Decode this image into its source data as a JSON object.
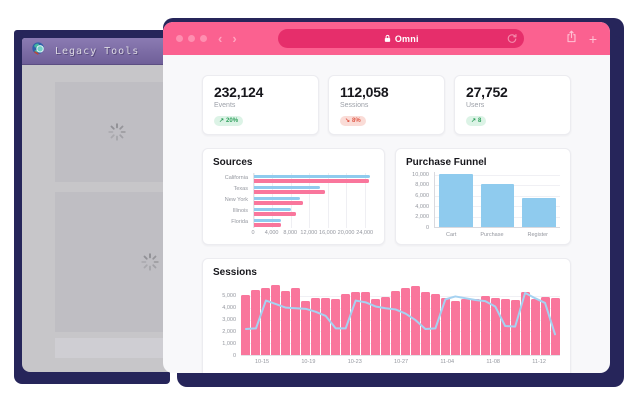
{
  "theme": {
    "chrome_pink": "#FB6190",
    "addressbar_pink": "#E62E6B",
    "shadow_navy": "#26255A",
    "legacy_purple": "#7B6BA2",
    "bar_pink": "#F9769C",
    "bar_blue": "#8FCBEE",
    "line_blue": "#A5D2F1"
  },
  "legacy": {
    "title": "Legacy Tools"
  },
  "browser": {
    "url_text": "Omni",
    "back": "‹",
    "forward": "›",
    "plus": "+"
  },
  "stats": [
    {
      "value": "232,124",
      "label": "Events",
      "arrow": "↗",
      "delta": "20%",
      "dir": "up"
    },
    {
      "value": "112,058",
      "label": "Sessions",
      "arrow": "↘",
      "delta": "8%",
      "dir": "down"
    },
    {
      "value": "27,752",
      "label": "Users",
      "arrow": "↗",
      "delta": "8",
      "dir": "up"
    }
  ],
  "chart_data": [
    {
      "type": "bar",
      "orientation": "horizontal",
      "title": "Sources",
      "categories": [
        "California",
        "Texas",
        "New York",
        "Illinois",
        "Florida"
      ],
      "series": [
        {
          "name": "blue",
          "color": "#8FCBEE",
          "values": [
            25200,
            14400,
            9900,
            8100,
            5900
          ]
        },
        {
          "name": "pink",
          "color": "#F9769C",
          "values": [
            24900,
            15300,
            10600,
            9000,
            5900
          ]
        }
      ],
      "xticks": [
        "0",
        "4,000",
        "8,000",
        "12,000",
        "16,000",
        "20,000",
        "24,000"
      ],
      "xlim": [
        0,
        26000
      ],
      "grid": true,
      "legend": false
    },
    {
      "type": "bar",
      "title": "Purchase Funnel",
      "categories": [
        "Cart",
        "Purchase",
        "Register"
      ],
      "values": [
        10200,
        8300,
        5500
      ],
      "color": "#8FCBEE",
      "yticks": [
        "10,000",
        "8,000",
        "6,000",
        "4,000",
        "2,000",
        "0"
      ],
      "ylim": [
        0,
        10500
      ],
      "grid": true,
      "legend": false
    },
    {
      "type": "bar+line",
      "title": "Sessions",
      "bar_color": "#F9769C",
      "line_color": "#A5D2F1",
      "bar_values": [
        5050,
        5500,
        5650,
        5900,
        5450,
        5700,
        4550,
        4850,
        4800,
        4700,
        5150,
        5300,
        5350,
        4700,
        4900,
        5400,
        5700,
        5850,
        5300,
        5150,
        4800,
        4600,
        4750,
        4700,
        5000,
        4850,
        4700,
        4650,
        5300,
        4750,
        4900,
        4850
      ],
      "line_values": [
        2200,
        2250,
        4600,
        4300,
        4000,
        3950,
        3900,
        3650,
        3300,
        2250,
        2250,
        4600,
        4450,
        4100,
        3950,
        3850,
        3500,
        2950,
        2200,
        2250,
        4700,
        4950,
        4800,
        4650,
        4550,
        4100,
        2450,
        2400,
        5250,
        4800,
        4400,
        1750
      ],
      "xticks": [
        "10-15",
        "10-19",
        "10-23",
        "10-27",
        "11-04",
        "11-08",
        "11-12"
      ],
      "yticks": [
        "5,000",
        "4,000",
        "3,000",
        "2,000",
        "1,000",
        "0"
      ],
      "ylim": [
        0,
        6000
      ],
      "grid": true,
      "legend": false
    }
  ]
}
